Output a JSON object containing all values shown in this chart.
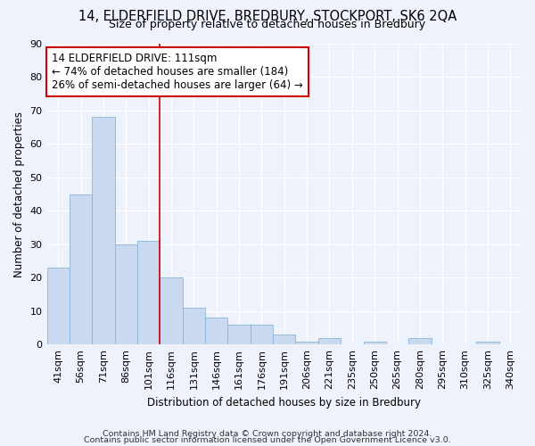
{
  "title1": "14, ELDERFIELD DRIVE, BREDBURY, STOCKPORT, SK6 2QA",
  "title2": "Size of property relative to detached houses in Bredbury",
  "xlabel": "Distribution of detached houses by size in Bredbury",
  "ylabel": "Number of detached properties",
  "categories": [
    "41sqm",
    "56sqm",
    "71sqm",
    "86sqm",
    "101sqm",
    "116sqm",
    "131sqm",
    "146sqm",
    "161sqm",
    "176sqm",
    "191sqm",
    "206sqm",
    "221sqm",
    "235sqm",
    "250sqm",
    "265sqm",
    "280sqm",
    "295sqm",
    "310sqm",
    "325sqm",
    "340sqm"
  ],
  "values": [
    23,
    45,
    68,
    30,
    31,
    20,
    11,
    8,
    6,
    6,
    3,
    1,
    2,
    0,
    1,
    0,
    2,
    0,
    0,
    1,
    0
  ],
  "bar_color": "#c9d9f0",
  "bar_edge_color": "#8ab4d8",
  "vline_x_index": 5,
  "vline_color": "#cc0000",
  "annotation_text": "14 ELDERFIELD DRIVE: 111sqm\n← 74% of detached houses are smaller (184)\n26% of semi-detached houses are larger (64) →",
  "annotation_box_color": "#ffffff",
  "annotation_box_edge": "#cc0000",
  "ylim": [
    0,
    90
  ],
  "yticks": [
    0,
    10,
    20,
    30,
    40,
    50,
    60,
    70,
    80,
    90
  ],
  "footer1": "Contains HM Land Registry data © Crown copyright and database right 2024.",
  "footer2": "Contains public sector information licensed under the Open Government Licence v3.0.",
  "bg_color": "#eef2fb",
  "grid_color": "#ffffff",
  "title1_fontsize": 10.5,
  "title2_fontsize": 9.0,
  "axis_fontsize": 8.5,
  "tick_fontsize": 8.0,
  "annot_fontsize": 8.5,
  "footer_fontsize": 6.8
}
